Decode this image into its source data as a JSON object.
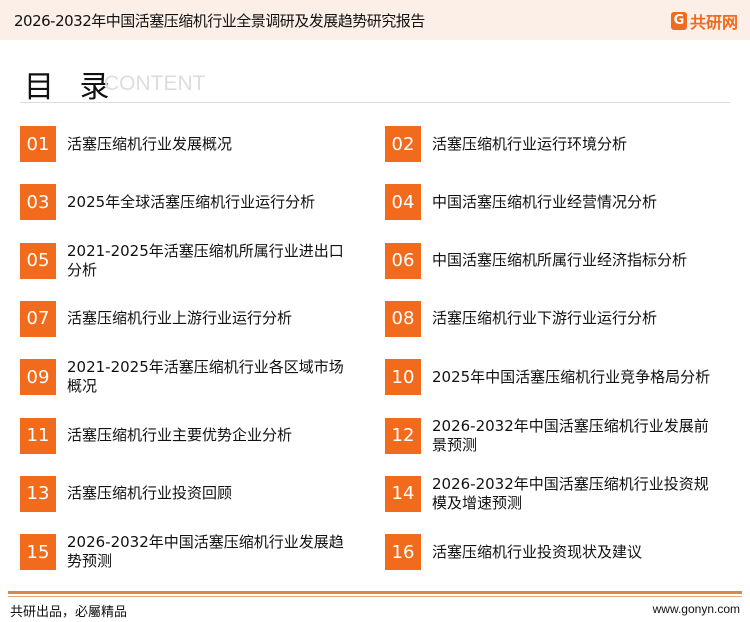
{
  "header": {
    "title": "2026-2032年中国活塞压缩机行业全景调研及发展趋势研究报告",
    "logo_text": "共研网",
    "logo_mark": "G"
  },
  "toc": {
    "title": "目 录",
    "title_en": "CONTENT"
  },
  "colors": {
    "accent": "#f26a1b",
    "header_bg": "#fcefe7"
  },
  "items": [
    {
      "num": "01",
      "label": "活塞压缩机行业发展概况"
    },
    {
      "num": "02",
      "label": "活塞压缩机行业运行环境分析"
    },
    {
      "num": "03",
      "label": "2025年全球活塞压缩机行业运行分析"
    },
    {
      "num": "04",
      "label": "中国活塞压缩机行业经营情况分析"
    },
    {
      "num": "05",
      "label": "2021-2025年活塞压缩机所属行业进出口分析"
    },
    {
      "num": "06",
      "label": "中国活塞压缩机所属行业经济指标分析"
    },
    {
      "num": "07",
      "label": "活塞压缩机行业上游行业运行分析"
    },
    {
      "num": "08",
      "label": "活塞压缩机行业下游行业运行分析"
    },
    {
      "num": "09",
      "label": "2021-2025年活塞压缩机行业各区域市场概况"
    },
    {
      "num": "10",
      "label": "2025年中国活塞压缩机行业竞争格局分析"
    },
    {
      "num": "11",
      "label": "活塞压缩机行业主要优势企业分析"
    },
    {
      "num": "12",
      "label": "2026-2032年中国活塞压缩机行业发展前景预测"
    },
    {
      "num": "13",
      "label": "活塞压缩机行业投资回顾"
    },
    {
      "num": "14",
      "label": "2026-2032年中国活塞压缩机行业投资规模及增速预测"
    },
    {
      "num": "15",
      "label": "2026-2032年中国活塞压缩机行业发展趋势预测"
    },
    {
      "num": "16",
      "label": "活塞压缩机行业投资现状及建议"
    }
  ],
  "footer": {
    "slogan": "共研出品，必屬精品",
    "url": "www.gonyn.com"
  }
}
